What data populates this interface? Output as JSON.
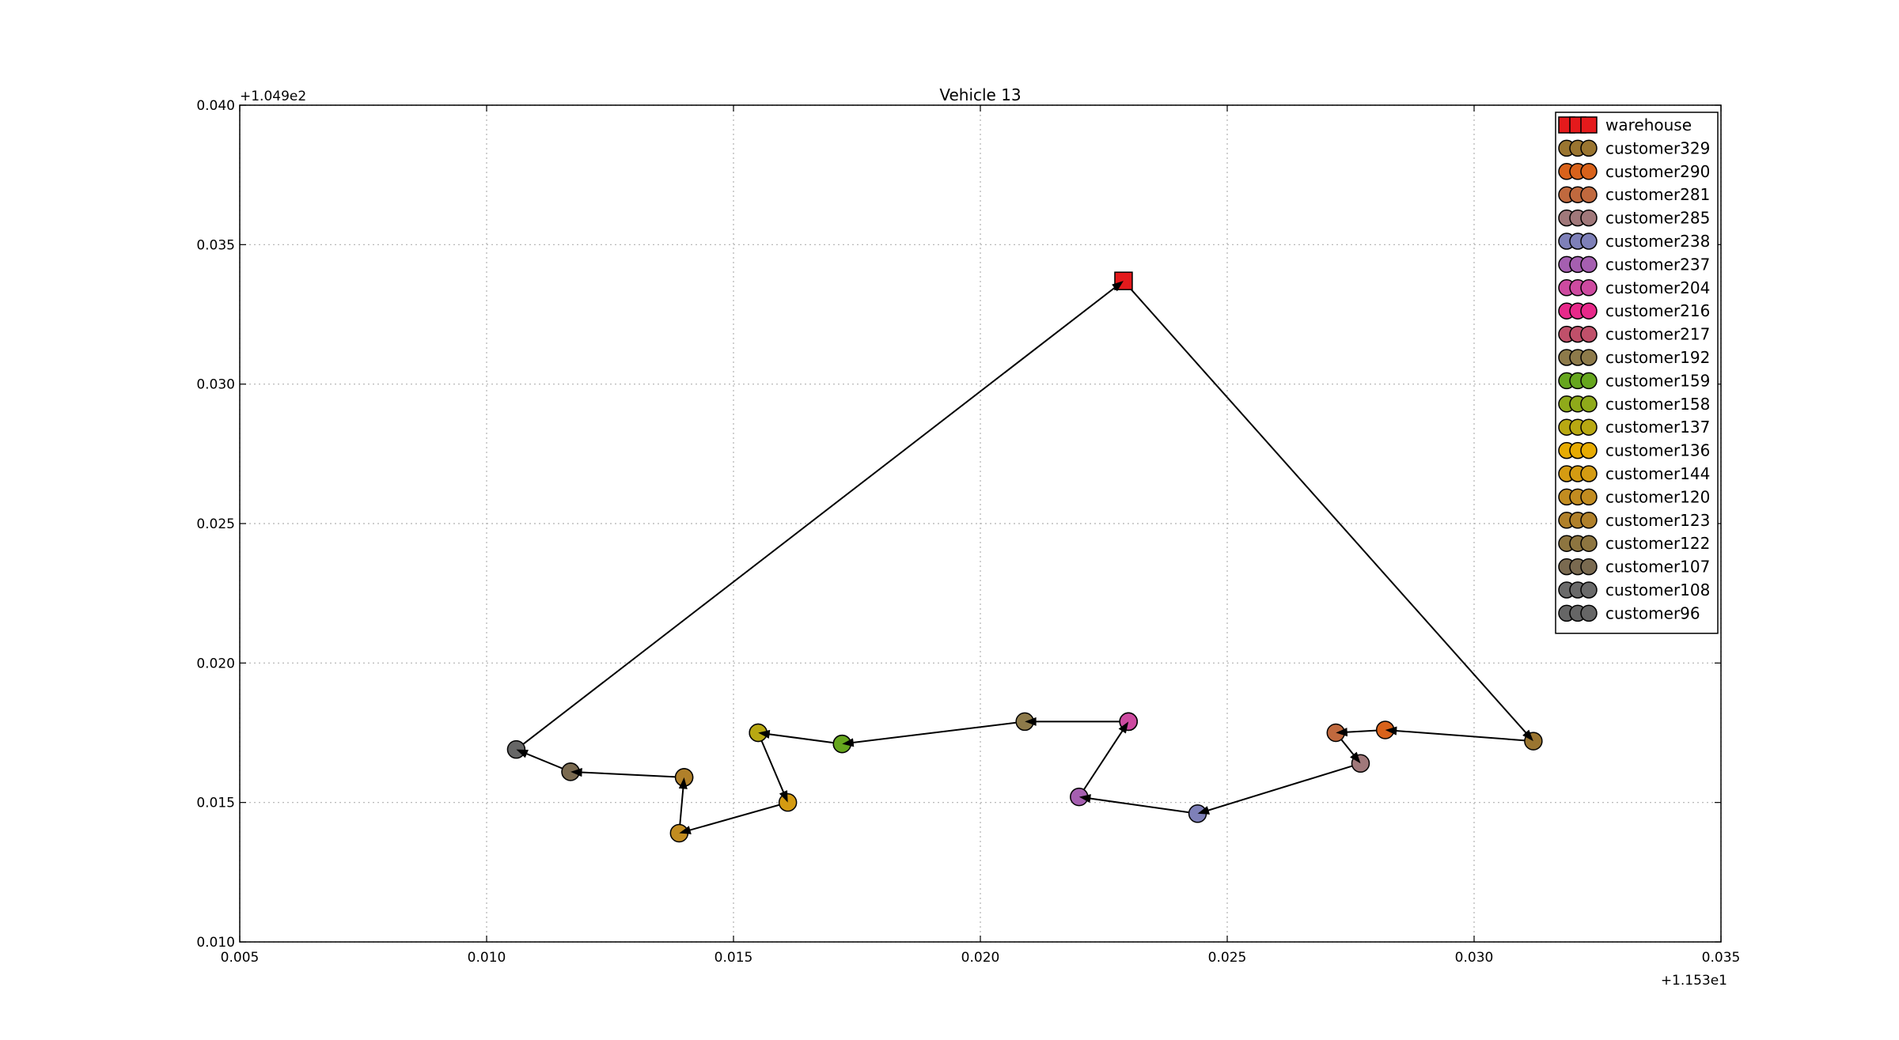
{
  "chart_data": {
    "type": "scatter",
    "title": "Vehicle 13",
    "xlabel": "",
    "ylabel": "",
    "xlim": [
      0.005,
      0.035
    ],
    "ylim": [
      0.01,
      0.04
    ],
    "x_ticks": [
      "0.005",
      "0.010",
      "0.015",
      "0.020",
      "0.025",
      "0.030",
      "0.035"
    ],
    "y_ticks": [
      "0.010",
      "0.015",
      "0.020",
      "0.025",
      "0.030",
      "0.035",
      "0.040"
    ],
    "x_offset_text": "+1.153e1",
    "y_offset_text": "+1.049e2",
    "grid": true,
    "legend_position": "top-right",
    "route_line_color": "#000000",
    "series": [
      {
        "name": "warehouse",
        "marker": "square",
        "color": "#e41a1c",
        "x": 0.0229,
        "y": 0.0337
      },
      {
        "name": "customer329",
        "marker": "circle",
        "color": "#9a7530",
        "x": 0.0312,
        "y": 0.0172
      },
      {
        "name": "customer290",
        "marker": "circle",
        "color": "#d8621b",
        "x": 0.0282,
        "y": 0.0176
      },
      {
        "name": "customer281",
        "marker": "circle",
        "color": "#c0693e",
        "x": 0.0272,
        "y": 0.0175
      },
      {
        "name": "customer285",
        "marker": "circle",
        "color": "#a0787a",
        "x": 0.0277,
        "y": 0.0164
      },
      {
        "name": "customer238",
        "marker": "circle",
        "color": "#7e80b8",
        "x": 0.0244,
        "y": 0.0146
      },
      {
        "name": "customer237",
        "marker": "circle",
        "color": "#a55fb0",
        "x": 0.022,
        "y": 0.0152
      },
      {
        "name": "customer204",
        "marker": "circle",
        "color": "#cd4aa0",
        "x": 0.023,
        "y": 0.0179
      },
      {
        "name": "customer216",
        "marker": "circle",
        "color": "#e7298a",
        "x": 0.023,
        "y": 0.0179
      },
      {
        "name": "customer217",
        "marker": "circle",
        "color": "#c0506a",
        "x": 0.023,
        "y": 0.0179
      },
      {
        "name": "customer192",
        "marker": "circle",
        "color": "#8d7a4a",
        "x": 0.0209,
        "y": 0.0179
      },
      {
        "name": "customer159",
        "marker": "circle",
        "color": "#66a61e",
        "x": 0.0172,
        "y": 0.0171
      },
      {
        "name": "customer158",
        "marker": "circle",
        "color": "#8faa1a",
        "x": 0.0172,
        "y": 0.0171
      },
      {
        "name": "customer137",
        "marker": "circle",
        "color": "#b8a812",
        "x": 0.0155,
        "y": 0.0175
      },
      {
        "name": "customer136",
        "marker": "circle",
        "color": "#e6ab02",
        "x": 0.0155,
        "y": 0.0175
      },
      {
        "name": "customer144",
        "marker": "circle",
        "color": "#d49b12",
        "x": 0.0161,
        "y": 0.015
      },
      {
        "name": "customer120",
        "marker": "circle",
        "color": "#c28c20",
        "x": 0.0139,
        "y": 0.0139
      },
      {
        "name": "customer123",
        "marker": "circle",
        "color": "#b0802a",
        "x": 0.014,
        "y": 0.0159
      },
      {
        "name": "customer122",
        "marker": "circle",
        "color": "#8d7540",
        "x": 0.014,
        "y": 0.0159
      },
      {
        "name": "customer107",
        "marker": "circle",
        "color": "#7a6a50",
        "x": 0.0117,
        "y": 0.0161
      },
      {
        "name": "customer108",
        "marker": "circle",
        "color": "#6a6a6a",
        "x": 0.0117,
        "y": 0.0161
      },
      {
        "name": "customer96",
        "marker": "circle",
        "color": "#666666",
        "x": 0.0106,
        "y": 0.0169
      }
    ],
    "route_order": [
      "warehouse",
      "customer329",
      "customer290",
      "customer281",
      "customer285",
      "customer238",
      "customer237",
      "customer204",
      "customer216",
      "customer217",
      "customer192",
      "customer159",
      "customer158",
      "customer137",
      "customer136",
      "customer144",
      "customer120",
      "customer123",
      "customer122",
      "customer107",
      "customer108",
      "customer96",
      "warehouse"
    ]
  }
}
